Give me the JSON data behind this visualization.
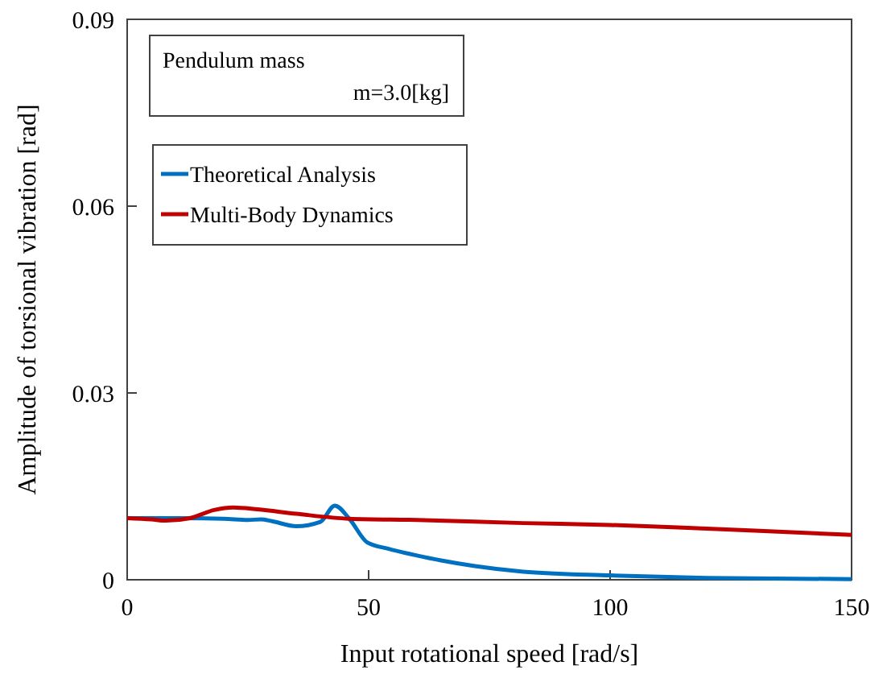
{
  "chart_data": {
    "type": "line",
    "xlabel": "Input rotational speed [rad/s]",
    "ylabel": "Amplitude of torsional vibration [rad]",
    "xlim": [
      0,
      150
    ],
    "xticks": [
      0,
      50,
      100,
      150
    ],
    "ylim": [
      0,
      0.09
    ],
    "yticks": [
      0,
      0.03,
      0.06,
      0.09
    ],
    "grid": false,
    "legend": "top left",
    "marker": "none",
    "line_style": "solid",
    "annotations": [
      "Pendulum mass\nm=3.0[kg]"
    ],
    "series": [
      {
        "name": "Theoretical Analysis",
        "color": "#0070c0",
        "x": [
          0,
          10,
          20,
          25,
          27.7,
          30,
          35,
          40,
          43,
          46,
          49.7,
          54,
          60,
          65,
          72,
          82,
          100,
          120,
          150
        ],
        "values": [
          0.0099,
          0.0099,
          0.0098,
          0.0096,
          0.0097,
          0.0094,
          0.0086,
          0.0093,
          0.0119,
          0.0098,
          0.006,
          0.005,
          0.0039,
          0.0031,
          0.0022,
          0.0013,
          0.0007,
          0.0003,
          0.0001
        ]
      },
      {
        "name": "Multi-Body Dynamics",
        "color": "#c00000",
        "x": [
          0,
          5,
          8,
          13,
          18,
          22,
          27,
          35,
          46,
          60,
          82,
          100,
          114,
          130,
          150
        ],
        "values": [
          0.0099,
          0.0097,
          0.0095,
          0.0099,
          0.0112,
          0.0116,
          0.0113,
          0.0106,
          0.0098,
          0.0096,
          0.0091,
          0.0088,
          0.0084,
          0.0079,
          0.0072
        ]
      }
    ]
  }
}
